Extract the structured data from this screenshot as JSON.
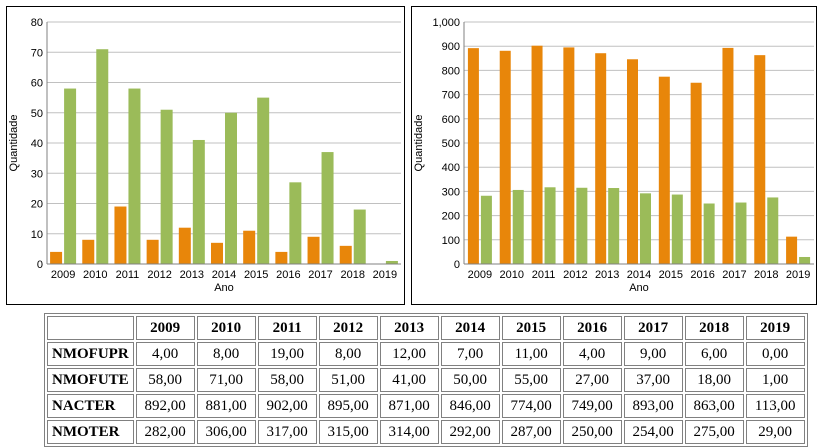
{
  "colors": {
    "orange": "#e8860a",
    "green": "#9bbb59",
    "grid": "#c0c0c0"
  },
  "chart_data": [
    {
      "type": "bar",
      "title": "",
      "xlabel": "Ano",
      "ylabel": "Quantidade",
      "ylim": [
        0,
        80
      ],
      "yticks": [
        "0",
        "10",
        "20",
        "30",
        "40",
        "50",
        "60",
        "70",
        "80"
      ],
      "categories": [
        "2009",
        "2010",
        "2011",
        "2012",
        "2013",
        "2014",
        "2015",
        "2016",
        "2017",
        "2018",
        "2019"
      ],
      "series": [
        {
          "name": "NMOFUPR",
          "color": "#e8860a",
          "values": [
            4,
            8,
            19,
            8,
            12,
            7,
            11,
            4,
            9,
            6,
            0
          ]
        },
        {
          "name": "NMOFUTE",
          "color": "#9bbb59",
          "values": [
            58,
            71,
            58,
            51,
            41,
            50,
            55,
            27,
            37,
            18,
            1
          ]
        }
      ]
    },
    {
      "type": "bar",
      "title": "",
      "xlabel": "Ano",
      "ylabel": "Quantidade",
      "ylim": [
        0,
        1000
      ],
      "yticks": [
        "0",
        "100",
        "200",
        "300",
        "400",
        "500",
        "600",
        "700",
        "800",
        "900",
        "1,000"
      ],
      "categories": [
        "2009",
        "2010",
        "2011",
        "2012",
        "2013",
        "2014",
        "2015",
        "2016",
        "2017",
        "2018",
        "2019"
      ],
      "series": [
        {
          "name": "NACTER",
          "color": "#e8860a",
          "values": [
            892,
            881,
            902,
            895,
            871,
            846,
            774,
            749,
            893,
            863,
            113
          ]
        },
        {
          "name": "NMOTER",
          "color": "#9bbb59",
          "values": [
            282,
            306,
            317,
            315,
            314,
            292,
            287,
            250,
            254,
            275,
            29
          ]
        }
      ]
    }
  ],
  "table": {
    "years": [
      "2009",
      "2010",
      "2011",
      "2012",
      "2013",
      "2014",
      "2015",
      "2016",
      "2017",
      "2018",
      "2019"
    ],
    "rows": [
      {
        "label": "NMOFUPR",
        "values": [
          "4,00",
          "8,00",
          "19,00",
          "8,00",
          "12,00",
          "7,00",
          "11,00",
          "4,00",
          "9,00",
          "6,00",
          "0,00"
        ]
      },
      {
        "label": "NMOFUTE",
        "values": [
          "58,00",
          "71,00",
          "58,00",
          "51,00",
          "41,00",
          "50,00",
          "55,00",
          "27,00",
          "37,00",
          "18,00",
          "1,00"
        ]
      },
      {
        "label": "NACTER",
        "values": [
          "892,00",
          "881,00",
          "902,00",
          "895,00",
          "871,00",
          "846,00",
          "774,00",
          "749,00",
          "893,00",
          "863,00",
          "113,00"
        ]
      },
      {
        "label": "NMOTER",
        "values": [
          "282,00",
          "306,00",
          "317,00",
          "315,00",
          "314,00",
          "292,00",
          "287,00",
          "250,00",
          "254,00",
          "275,00",
          "29,00"
        ]
      }
    ]
  }
}
